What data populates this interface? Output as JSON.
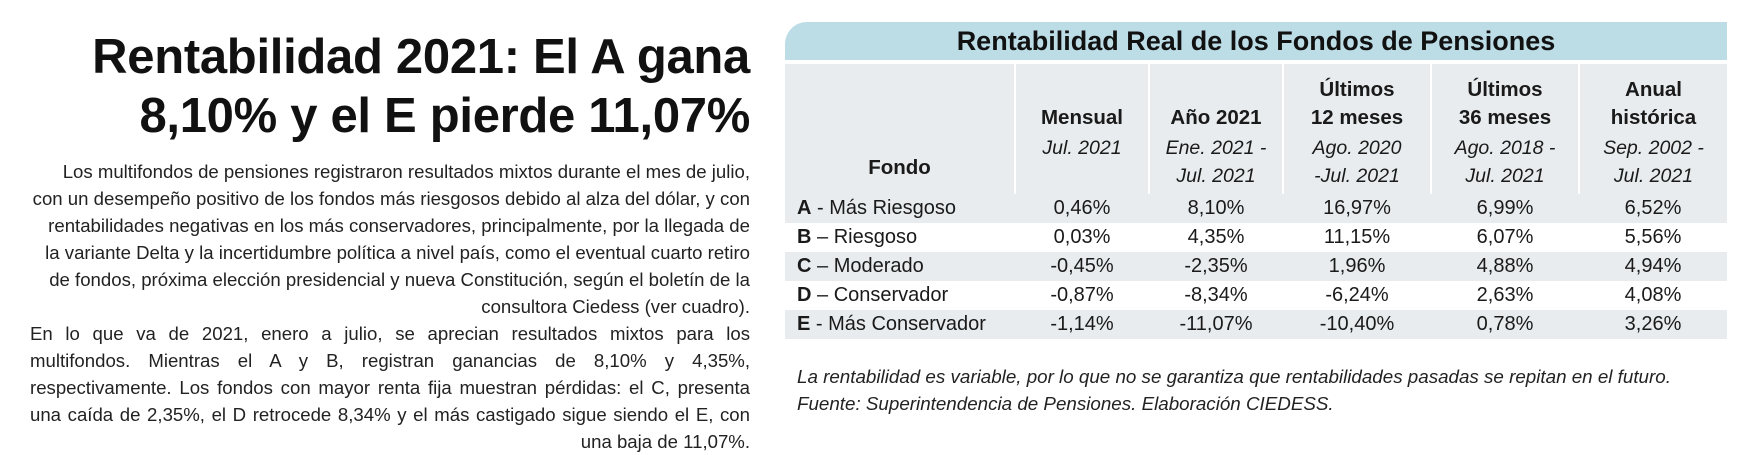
{
  "article": {
    "headline_line1": "Rentabilidad 2021: El A gana",
    "headline_line2": "8,10% y el E pierde 11,07%",
    "paragraph1": "Los multifondos de pensiones registraron resultados mixtos durante el mes de julio, con un desempeño positivo de los fondos más riesgosos debido al alza del dólar, y con rentabilidades negativas en los más conservadores, principalmente, por la llegada de la variante Delta y la incertidumbre política a nivel país, como el eventual cuarto retiro de fondos, próxima elección presidencial y nueva Constitución, según el boletín de la consultora Ciedess (ver cuadro).",
    "paragraph2": "En lo que va de 2021, enero a julio, se aprecian resultados mixtos para los multifondos. Mientras el A y B, registran ganancias de 8,10% y 4,35%, respectivamente. Los fondos con mayor renta fija muestran pérdidas: el C, presenta una caída de 2,35%, el D retrocede 8,34% y el más castigado sigue siendo el E, con una baja de 11,07%."
  },
  "table": {
    "title": "Rentabilidad Real de los Fondos de Pensiones",
    "fondo_header": "Fondo",
    "columns": [
      {
        "title1": "",
        "title2": "Mensual",
        "period1": "Jul. 2021",
        "period2": ""
      },
      {
        "title1": "",
        "title2": "Año 2021",
        "period1": "Ene. 2021 -",
        "period2": "Jul. 2021"
      },
      {
        "title1": "Últimos",
        "title2": "12 meses",
        "period1": "Ago. 2020",
        "period2": "-Jul. 2021"
      },
      {
        "title1": "Últimos",
        "title2": "36 meses",
        "period1": "Ago. 2018 -",
        "period2": "Jul. 2021"
      },
      {
        "title1": "Anual",
        "title2": "histórica",
        "period1": "Sep. 2002 -",
        "period2": "Jul. 2021"
      }
    ],
    "rows": [
      {
        "letter": "A",
        "name": " - Más Riesgoso",
        "values": [
          "0,46%",
          "8,10%",
          "16,97%",
          "6,99%",
          "6,52%"
        ]
      },
      {
        "letter": "B",
        "name": " – Riesgoso",
        "values": [
          "0,03%",
          "4,35%",
          "11,15%",
          "6,07%",
          "5,56%"
        ]
      },
      {
        "letter": "C",
        "name": " – Moderado",
        "values": [
          "-0,45%",
          "-2,35%",
          "1,96%",
          "4,88%",
          "4,94%"
        ]
      },
      {
        "letter": "D",
        "name": " – Conservador",
        "values": [
          "-0,87%",
          "-8,34%",
          "-6,24%",
          "2,63%",
          "4,08%"
        ]
      },
      {
        "letter": "E",
        "name": " - Más Conservador",
        "values": [
          "-1,14%",
          "-11,07%",
          "-10,40%",
          "0,78%",
          "3,26%"
        ]
      }
    ],
    "note_line1": "La rentabilidad es variable, por lo que no se garantiza que rentabilidades pasadas se repitan en el futuro.",
    "note_line2": "Fuente: Superintendencia de Pensiones. Elaboración CIEDESS."
  },
  "colors": {
    "title_band": "#bcdce6",
    "row_shade": "#e8ecee"
  }
}
